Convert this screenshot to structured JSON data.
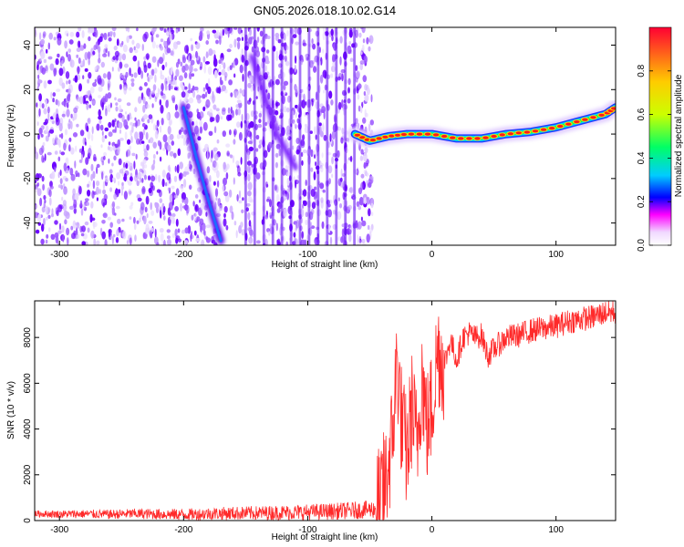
{
  "title": "GN05.2026.018.10.02.G14",
  "chart_data": [
    {
      "type": "heatmap",
      "xlabel": "Height of straight line (km)",
      "ylabel": "Frequency (Hz)",
      "xlim": [
        -320,
        148
      ],
      "ylim": [
        -50,
        48
      ],
      "xticks": [
        -300,
        -200,
        -100,
        0,
        100
      ],
      "yticks": [
        -40,
        -20,
        0,
        20,
        40
      ],
      "colorbar": {
        "label": "Normalized spectral amplitude",
        "range": [
          0.0,
          1.0
        ],
        "ticks": [
          0.0,
          0.2,
          0.4,
          0.6,
          0.8
        ],
        "colors": [
          "#ffffff",
          "#ff00ff",
          "#0000ff",
          "#00ffff",
          "#00ff00",
          "#ffff00",
          "#ff0000"
        ]
      },
      "features": {
        "main_track": [
          [
            -62,
            0
          ],
          [
            -50,
            -3
          ],
          [
            -35,
            -1
          ],
          [
            -20,
            0
          ],
          [
            0,
            0
          ],
          [
            20,
            -2
          ],
          [
            40,
            -2
          ],
          [
            60,
            0
          ],
          [
            80,
            1
          ],
          [
            100,
            3
          ],
          [
            120,
            6
          ],
          [
            140,
            9
          ],
          [
            148,
            12
          ]
        ],
        "descending_track": [
          [
            -200,
            12
          ],
          [
            -190,
            -10
          ],
          [
            -180,
            -30
          ],
          [
            -170,
            -48
          ]
        ],
        "faint_track": [
          [
            -145,
            35
          ],
          [
            -125,
            0
          ],
          [
            -110,
            -15
          ]
        ]
      }
    },
    {
      "type": "line",
      "xlabel": "Height of straight line (km)",
      "ylabel": "SNR (10 * v/v)",
      "xlim": [
        -320,
        148
      ],
      "ylim": [
        0,
        9600
      ],
      "xticks": [
        -300,
        -200,
        -100,
        0,
        100
      ],
      "yticks": [
        0,
        2000,
        4000,
        6000,
        8000
      ],
      "color": "#ff2a2a",
      "series": [
        {
          "x": [
            -320,
            -300,
            -280,
            -260,
            -240,
            -220,
            -200,
            -180,
            -160,
            -140,
            -120,
            -100,
            -80,
            -60,
            -45,
            -38,
            -32,
            -28,
            -24,
            -20,
            -16,
            -12,
            -8,
            -4,
            0,
            5,
            10,
            15,
            20,
            25,
            30,
            35,
            40,
            45,
            50,
            60,
            70,
            80,
            90,
            100,
            110,
            120,
            130,
            140,
            148
          ],
          "y": [
            300,
            280,
            290,
            270,
            300,
            280,
            260,
            300,
            320,
            330,
            350,
            370,
            400,
            450,
            500,
            1500,
            3500,
            7000,
            4000,
            2800,
            5000,
            3200,
            6500,
            4000,
            5000,
            7500,
            6800,
            7900,
            7000,
            8000,
            8200,
            8000,
            8100,
            7200,
            7500,
            8000,
            8100,
            8300,
            8400,
            8500,
            8700,
            8800,
            8900,
            9100,
            9100
          ]
        }
      ]
    }
  ]
}
